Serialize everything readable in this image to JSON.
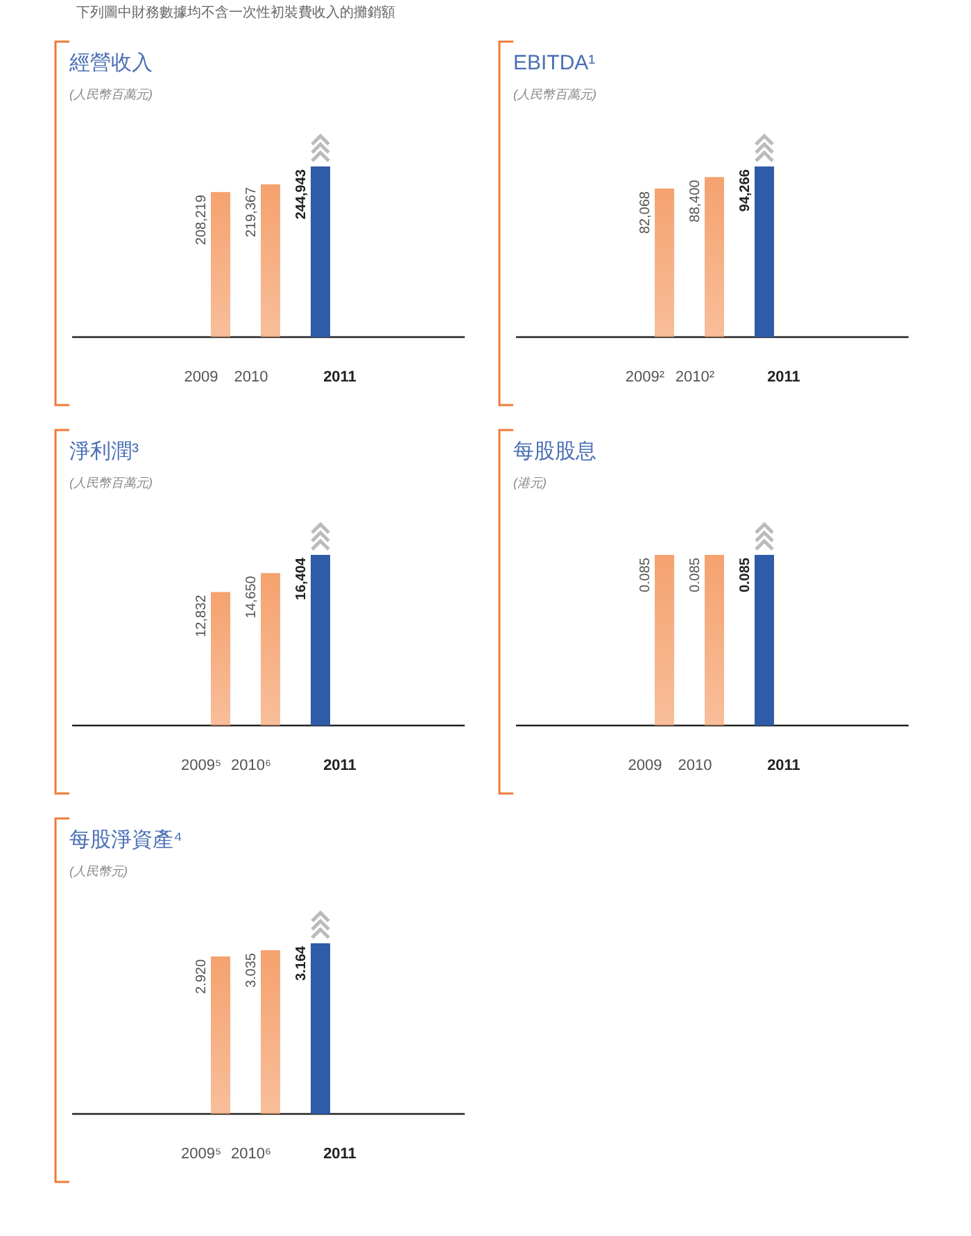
{
  "chart_data": [
    {
      "type": "bar",
      "title": "經營收入",
      "subtitle": "(人民幣百萬元)",
      "annotations": [
        "下列圖中財務數據均不含一次性初裝費收入的攤銷額"
      ],
      "categories": [
        "2009",
        "2010",
        "2011"
      ],
      "values": [
        208219,
        219367,
        244943
      ],
      "value_labels": [
        "208,219",
        "219,367",
        "244,943"
      ],
      "colors": [
        "#f5a26f",
        "#f5a26f",
        "#2f5ba8"
      ]
    },
    {
      "type": "bar",
      "title": "EBITDA¹",
      "subtitle": "(人民幣百萬元)",
      "categories": [
        "2009²",
        "2010²",
        "2011"
      ],
      "values": [
        82068,
        88400,
        94266
      ],
      "value_labels": [
        "82,068",
        "88,400",
        "94,266"
      ],
      "colors": [
        "#f5a26f",
        "#f5a26f",
        "#2f5ba8"
      ]
    },
    {
      "type": "bar",
      "title": "淨利潤³",
      "subtitle": "(人民幣百萬元)",
      "categories": [
        "2009⁵",
        "2010⁶",
        "2011"
      ],
      "values": [
        12832,
        14650,
        16404
      ],
      "value_labels": [
        "12,832",
        "14,650",
        "16,404"
      ],
      "colors": [
        "#f5a26f",
        "#f5a26f",
        "#2f5ba8"
      ]
    },
    {
      "type": "bar",
      "title": "每股股息",
      "subtitle": "(港元)",
      "categories": [
        "2009",
        "2010",
        "2011"
      ],
      "values": [
        0.085,
        0.085,
        0.085
      ],
      "value_labels": [
        "0.085",
        "0.085",
        "0.085"
      ],
      "colors": [
        "#f5a26f",
        "#f5a26f",
        "#2f5ba8"
      ]
    },
    {
      "type": "bar",
      "title": "每股淨資產⁴",
      "subtitle": "(人民幣元)",
      "categories": [
        "2009⁵",
        "2010⁶",
        "2011"
      ],
      "values": [
        2.92,
        3.035,
        3.164
      ],
      "value_labels": [
        "2.920",
        "3.035",
        "3.164"
      ],
      "colors": [
        "#f5a26f",
        "#f5a26f",
        "#2f5ba8"
      ]
    }
  ]
}
